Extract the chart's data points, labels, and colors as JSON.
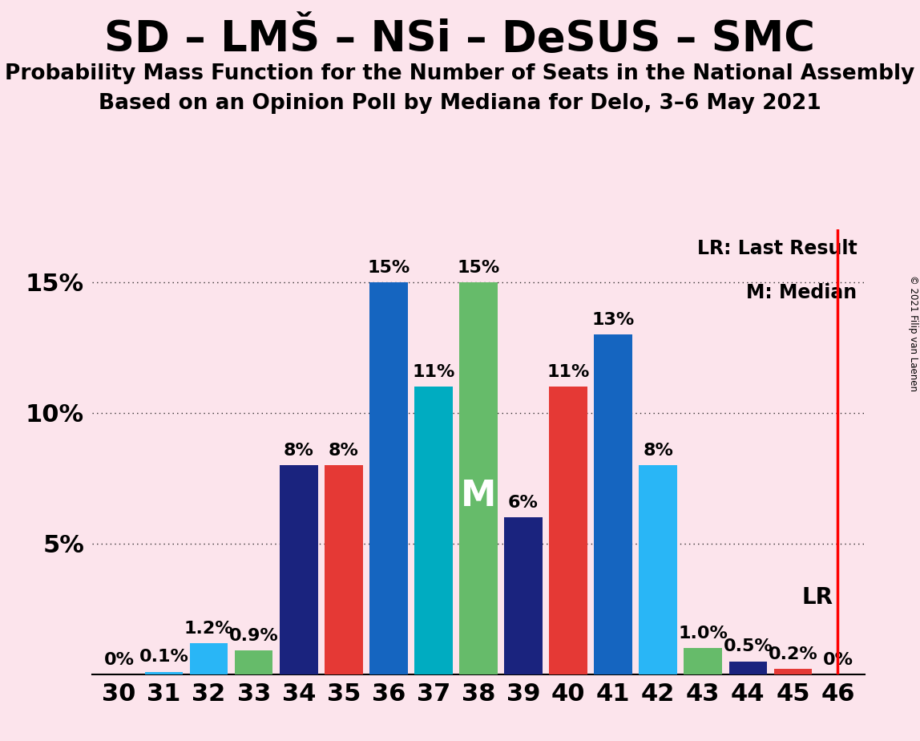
{
  "title": "SD – LMŠ – NSi – DeSUS – SMC",
  "subtitle1": "Probability Mass Function for the Number of Seats in the National Assembly",
  "subtitle2": "Based on an Opinion Poll by Mediana for Delo, 3–6 May 2021",
  "copyright": "© 2021 Filip van Laenen",
  "background_color": "#fce4ec",
  "seats": [
    30,
    31,
    32,
    33,
    34,
    35,
    36,
    37,
    38,
    39,
    40,
    41,
    42,
    43,
    44,
    45,
    46
  ],
  "values": [
    0.0,
    0.1,
    1.2,
    0.9,
    8.0,
    8.0,
    15.0,
    11.0,
    15.0,
    6.0,
    11.0,
    13.0,
    8.0,
    1.0,
    0.5,
    0.2,
    0.0
  ],
  "labels": [
    "0%",
    "0.1%",
    "1.2%",
    "0.9%",
    "8%",
    "8%",
    "15%",
    "11%",
    "15%",
    "6%",
    "11%",
    "13%",
    "8%",
    "1.0%",
    "0.5%",
    "0.2%",
    "0%"
  ],
  "median_seat": 38,
  "lr_seat": 46,
  "lr_legend": "LR: Last Result",
  "m_legend": "M: Median",
  "bar_colors_by_seat": {
    "30": "#1a237e",
    "31": "#29b6f6",
    "32": "#29b6f6",
    "33": "#66bb6a",
    "34": "#1a237e",
    "35": "#e53935",
    "36": "#1565c0",
    "37": "#00acc1",
    "38": "#66bb6a",
    "39": "#1a237e",
    "40": "#e53935",
    "41": "#1565c0",
    "42": "#29b6f6",
    "43": "#66bb6a",
    "44": "#1a237e",
    "45": "#e53935",
    "46": "#e53935"
  },
  "title_fontsize": 38,
  "subtitle_fontsize": 19,
  "axis_fontsize": 22,
  "label_fontsize": 16
}
